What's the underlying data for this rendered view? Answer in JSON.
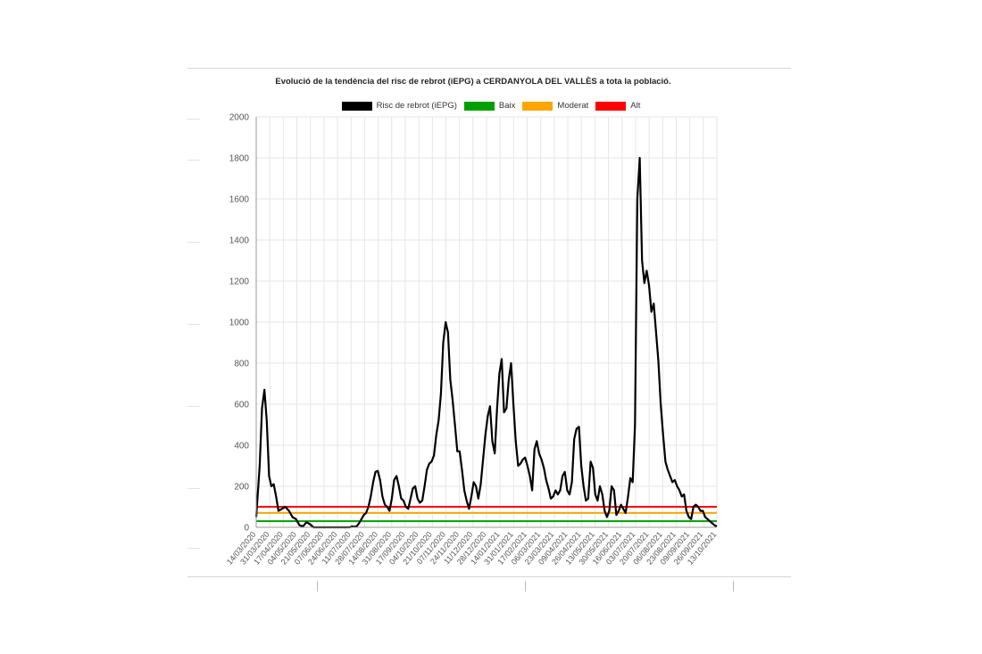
{
  "chart_data": {
    "type": "line",
    "title": "Evolució de la tendència del risc de rebrot (iEPG) a CERDANYOLA DEL VALLÈS a tota la població.",
    "legend": [
      {
        "name": "Risc de rebrot (iEPG)",
        "color": "#000000"
      },
      {
        "name": "Baix",
        "color": "#00a000"
      },
      {
        "name": "Moderat",
        "color": "#ffa500"
      },
      {
        "name": "Alt",
        "color": "#ff0000"
      }
    ],
    "ylim": [
      0,
      2000
    ],
    "y_ticks": [
      0,
      200,
      400,
      600,
      800,
      1000,
      1200,
      1400,
      1600,
      1800,
      2000
    ],
    "x_ticks": [
      "14/03/2020",
      "31/03/2020",
      "17/04/2020",
      "04/05/2020",
      "21/05/2020",
      "07/06/2020",
      "24/06/2020",
      "11/07/2020",
      "28/07/2020",
      "14/08/2020",
      "31/08/2020",
      "17/09/2020",
      "04/10/2020",
      "21/10/2020",
      "07/11/2020",
      "24/11/2020",
      "11/12/2020",
      "28/12/2020",
      "14/01/2021",
      "31/01/2021",
      "17/02/2021",
      "06/03/2021",
      "23/03/2021",
      "09/04/2021",
      "26/04/2021",
      "13/05/2021",
      "30/05/2021",
      "16/06/2021",
      "03/07/2021",
      "20/07/2021",
      "06/08/2021",
      "23/08/2021",
      "09/09/2021",
      "26/09/2021",
      "13/10/2021"
    ],
    "threshold_lines": [
      {
        "name": "Baix",
        "value": 30,
        "color": "#00a000"
      },
      {
        "name": "Moderat",
        "value": 70,
        "color": "#ffa500"
      },
      {
        "name": "Alt",
        "value": 100,
        "color": "#ff0000"
      }
    ],
    "series": [
      {
        "name": "Risc de rebrot (iEPG)",
        "color": "#000000",
        "points": [
          [
            0,
            50
          ],
          [
            3,
            300
          ],
          [
            5,
            580
          ],
          [
            7,
            670
          ],
          [
            9,
            520
          ],
          [
            11,
            250
          ],
          [
            13,
            200
          ],
          [
            15,
            210
          ],
          [
            17,
            150
          ],
          [
            19,
            80
          ],
          [
            22,
            90
          ],
          [
            25,
            100
          ],
          [
            28,
            80
          ],
          [
            31,
            50
          ],
          [
            34,
            40
          ],
          [
            37,
            10
          ],
          [
            40,
            5
          ],
          [
            43,
            25
          ],
          [
            46,
            15
          ],
          [
            49,
            0
          ],
          [
            55,
            0
          ],
          [
            62,
            0
          ],
          [
            68,
            0
          ],
          [
            75,
            0
          ],
          [
            80,
            0
          ],
          [
            82,
            5
          ],
          [
            84,
            3
          ],
          [
            86,
            5
          ],
          [
            88,
            20
          ],
          [
            90,
            40
          ],
          [
            92,
            60
          ],
          [
            94,
            70
          ],
          [
            96,
            100
          ],
          [
            98,
            150
          ],
          [
            100,
            220
          ],
          [
            102,
            270
          ],
          [
            104,
            275
          ],
          [
            106,
            230
          ],
          [
            108,
            150
          ],
          [
            110,
            110
          ],
          [
            112,
            100
          ],
          [
            114,
            80
          ],
          [
            116,
            140
          ],
          [
            118,
            230
          ],
          [
            120,
            250
          ],
          [
            122,
            200
          ],
          [
            124,
            140
          ],
          [
            126,
            130
          ],
          [
            128,
            100
          ],
          [
            130,
            90
          ],
          [
            132,
            140
          ],
          [
            134,
            190
          ],
          [
            136,
            200
          ],
          [
            138,
            140
          ],
          [
            140,
            120
          ],
          [
            142,
            130
          ],
          [
            144,
            200
          ],
          [
            146,
            280
          ],
          [
            148,
            310
          ],
          [
            150,
            320
          ],
          [
            152,
            350
          ],
          [
            154,
            450
          ],
          [
            156,
            520
          ],
          [
            158,
            650
          ],
          [
            160,
            900
          ],
          [
            162,
            1000
          ],
          [
            164,
            950
          ],
          [
            166,
            720
          ],
          [
            168,
            620
          ],
          [
            170,
            500
          ],
          [
            172,
            370
          ],
          [
            174,
            370
          ],
          [
            176,
            280
          ],
          [
            178,
            180
          ],
          [
            180,
            130
          ],
          [
            182,
            90
          ],
          [
            184,
            150
          ],
          [
            186,
            220
          ],
          [
            188,
            200
          ],
          [
            190,
            140
          ],
          [
            192,
            210
          ],
          [
            194,
            330
          ],
          [
            196,
            450
          ],
          [
            198,
            540
          ],
          [
            200,
            590
          ],
          [
            202,
            420
          ],
          [
            204,
            360
          ],
          [
            206,
            580
          ],
          [
            208,
            750
          ],
          [
            210,
            820
          ],
          [
            212,
            560
          ],
          [
            214,
            580
          ],
          [
            216,
            720
          ],
          [
            218,
            800
          ],
          [
            220,
            600
          ],
          [
            222,
            420
          ],
          [
            224,
            300
          ],
          [
            226,
            310
          ],
          [
            228,
            330
          ],
          [
            230,
            340
          ],
          [
            232,
            300
          ],
          [
            234,
            250
          ],
          [
            236,
            180
          ],
          [
            238,
            380
          ],
          [
            240,
            420
          ],
          [
            242,
            360
          ],
          [
            244,
            330
          ],
          [
            246,
            290
          ],
          [
            248,
            230
          ],
          [
            250,
            190
          ],
          [
            252,
            140
          ],
          [
            254,
            150
          ],
          [
            256,
            180
          ],
          [
            258,
            160
          ],
          [
            260,
            180
          ],
          [
            262,
            250
          ],
          [
            264,
            270
          ],
          [
            266,
            180
          ],
          [
            268,
            160
          ],
          [
            270,
            220
          ],
          [
            272,
            430
          ],
          [
            274,
            480
          ],
          [
            276,
            490
          ],
          [
            278,
            300
          ],
          [
            280,
            200
          ],
          [
            282,
            130
          ],
          [
            284,
            140
          ],
          [
            286,
            320
          ],
          [
            288,
            290
          ],
          [
            290,
            160
          ],
          [
            292,
            130
          ],
          [
            294,
            200
          ],
          [
            296,
            160
          ],
          [
            298,
            80
          ],
          [
            300,
            50
          ],
          [
            302,
            80
          ],
          [
            304,
            200
          ],
          [
            306,
            180
          ],
          [
            308,
            60
          ],
          [
            310,
            80
          ],
          [
            312,
            110
          ],
          [
            314,
            90
          ],
          [
            316,
            70
          ],
          [
            318,
            150
          ],
          [
            320,
            240
          ],
          [
            322,
            220
          ],
          [
            324,
            500
          ],
          [
            326,
            1600
          ],
          [
            328,
            1800
          ],
          [
            330,
            1300
          ],
          [
            332,
            1190
          ],
          [
            334,
            1250
          ],
          [
            336,
            1180
          ],
          [
            338,
            1050
          ],
          [
            340,
            1090
          ],
          [
            342,
            950
          ],
          [
            344,
            810
          ],
          [
            346,
            600
          ],
          [
            348,
            450
          ],
          [
            350,
            320
          ],
          [
            352,
            280
          ],
          [
            354,
            250
          ],
          [
            356,
            220
          ],
          [
            358,
            230
          ],
          [
            360,
            200
          ],
          [
            362,
            180
          ],
          [
            364,
            150
          ],
          [
            366,
            160
          ],
          [
            368,
            80
          ],
          [
            370,
            50
          ],
          [
            372,
            40
          ],
          [
            374,
            100
          ],
          [
            376,
            110
          ],
          [
            378,
            100
          ],
          [
            380,
            80
          ],
          [
            382,
            80
          ],
          [
            384,
            50
          ],
          [
            386,
            40
          ],
          [
            388,
            30
          ],
          [
            390,
            20
          ],
          [
            392,
            10
          ],
          [
            394,
            5
          ]
        ]
      }
    ]
  }
}
